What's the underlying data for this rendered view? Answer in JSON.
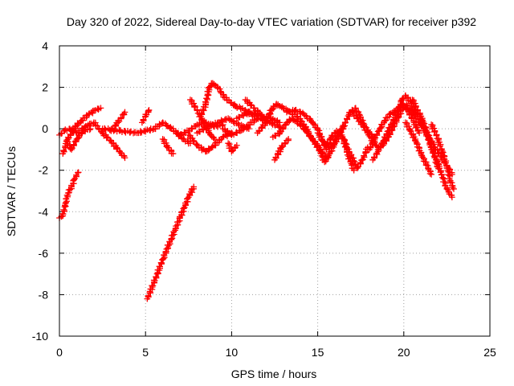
{
  "chart_data": {
    "type": "scatter",
    "title": "Day 320 of 2022, Sidereal Day-to-day VTEC variation (SDTVAR) for receiver p392",
    "xlabel": "GPS time / hours",
    "ylabel": "SDTVAR / TECUs",
    "xlim": [
      0,
      25
    ],
    "ylim": [
      -10,
      4
    ],
    "xticks": [
      "0",
      "5",
      "10",
      "15",
      "20",
      "25"
    ],
    "yticks": [
      "4",
      "2",
      "0",
      "-2",
      "-4",
      "-6",
      "-8",
      "-10"
    ],
    "grid": true,
    "marker": "plus",
    "color": "#ff0000",
    "series": [
      {
        "name": "arc-1",
        "values": [
          [
            0.0,
            -4.3
          ],
          [
            0.2,
            -4.2
          ],
          [
            0.35,
            -3.6
          ],
          [
            0.5,
            -3.1
          ],
          [
            0.7,
            -2.8
          ],
          [
            0.9,
            -2.4
          ],
          [
            1.1,
            -2.1
          ]
        ]
      },
      {
        "name": "arc-2",
        "values": [
          [
            5.1,
            -8.2
          ],
          [
            5.5,
            -7.4
          ],
          [
            6.0,
            -6.3
          ],
          [
            6.5,
            -5.3
          ],
          [
            7.0,
            -4.3
          ],
          [
            7.5,
            -3.3
          ],
          [
            7.8,
            -2.8
          ]
        ]
      },
      {
        "name": "arc-3",
        "values": [
          [
            0.0,
            -0.3
          ],
          [
            0.3,
            -0.1
          ],
          [
            0.6,
            0.0
          ],
          [
            1.0,
            -0.2
          ],
          [
            1.5,
            0.1
          ],
          [
            2.0,
            0.3
          ],
          [
            2.5,
            -0.2
          ],
          [
            3.0,
            -0.6
          ],
          [
            3.5,
            -1.1
          ],
          [
            3.8,
            -1.4
          ]
        ]
      },
      {
        "name": "arc-4",
        "values": [
          [
            0.2,
            -1.2
          ],
          [
            0.5,
            -0.5
          ],
          [
            0.9,
            0.1
          ],
          [
            1.3,
            0.4
          ],
          [
            1.7,
            0.7
          ],
          [
            2.1,
            0.9
          ],
          [
            2.4,
            1.0
          ]
        ]
      },
      {
        "name": "arc-5",
        "values": [
          [
            0.4,
            -0.6
          ],
          [
            0.7,
            -1.0
          ],
          [
            1.0,
            -0.5
          ],
          [
            1.4,
            -0.1
          ],
          [
            1.8,
            0.0
          ]
        ]
      },
      {
        "name": "arc-6",
        "values": [
          [
            3.0,
            -0.1
          ],
          [
            3.4,
            0.3
          ],
          [
            3.8,
            0.8
          ]
        ]
      },
      {
        "name": "arc-7",
        "values": [
          [
            4.8,
            0.3
          ],
          [
            5.0,
            0.6
          ],
          [
            5.2,
            0.9
          ]
        ]
      },
      {
        "name": "arc-8",
        "values": [
          [
            2.5,
            0.0
          ],
          [
            3.5,
            -0.1
          ],
          [
            4.5,
            -0.2
          ],
          [
            5.5,
            0.0
          ],
          [
            6.0,
            0.3
          ],
          [
            6.5,
            0.0
          ],
          [
            7.0,
            -0.3
          ],
          [
            7.5,
            -0.1
          ],
          [
            8.0,
            0.2
          ],
          [
            8.5,
            0.3
          ],
          [
            9.0,
            0.1
          ],
          [
            9.5,
            0.2
          ]
        ]
      },
      {
        "name": "arc-9",
        "values": [
          [
            6.0,
            -0.5
          ],
          [
            6.3,
            -0.9
          ],
          [
            6.6,
            -1.2
          ]
        ]
      },
      {
        "name": "arc-10",
        "values": [
          [
            6.8,
            -0.2
          ],
          [
            7.2,
            -0.5
          ],
          [
            7.6,
            -0.7
          ]
        ]
      },
      {
        "name": "arc-11",
        "values": [
          [
            7.5,
            -0.3
          ],
          [
            8.0,
            -0.8
          ],
          [
            8.5,
            -1.1
          ],
          [
            9.0,
            -0.8
          ],
          [
            9.5,
            -0.4
          ],
          [
            10.0,
            -0.2
          ]
        ]
      },
      {
        "name": "arc-12",
        "values": [
          [
            7.6,
            1.4
          ],
          [
            8.0,
            0.9
          ],
          [
            8.3,
            0.4
          ],
          [
            8.7,
            -0.2
          ],
          [
            9.0,
            -0.5
          ]
        ]
      },
      {
        "name": "arc-13",
        "values": [
          [
            8.2,
            0.6
          ],
          [
            8.5,
            1.2
          ],
          [
            8.7,
            2.0
          ],
          [
            8.9,
            2.2
          ],
          [
            9.2,
            2.0
          ],
          [
            9.6,
            1.5
          ],
          [
            10.2,
            1.1
          ],
          [
            10.8,
            0.9
          ],
          [
            11.3,
            0.6
          ]
        ]
      },
      {
        "name": "arc-14",
        "values": [
          [
            8.0,
            -0.2
          ],
          [
            8.6,
            0.1
          ],
          [
            9.2,
            0.3
          ],
          [
            9.8,
            0.5
          ],
          [
            10.4,
            0.2
          ],
          [
            11.0,
            0.0
          ]
        ]
      },
      {
        "name": "arc-15",
        "values": [
          [
            9.5,
            0.0
          ],
          [
            10.0,
            -0.3
          ],
          [
            10.5,
            -0.1
          ],
          [
            11.0,
            0.2
          ],
          [
            11.5,
            0.5
          ],
          [
            12.0,
            0.4
          ]
        ]
      },
      {
        "name": "arc-16",
        "values": [
          [
            9.8,
            -0.7
          ],
          [
            10.0,
            -1.1
          ],
          [
            10.3,
            -0.8
          ]
        ]
      },
      {
        "name": "arc-17",
        "values": [
          [
            10.3,
            0.5
          ],
          [
            11.0,
            0.8
          ],
          [
            11.5,
            0.7
          ],
          [
            12.0,
            0.4
          ],
          [
            12.5,
            0.2
          ],
          [
            13.0,
            0.0
          ]
        ]
      },
      {
        "name": "arc-18",
        "values": [
          [
            10.8,
            1.4
          ],
          [
            11.3,
            1.0
          ],
          [
            11.8,
            0.6
          ],
          [
            12.3,
            0.5
          ],
          [
            12.8,
            0.3
          ]
        ]
      },
      {
        "name": "arc-19",
        "values": [
          [
            11.5,
            -0.2
          ],
          [
            12.0,
            0.3
          ],
          [
            12.3,
            0.9
          ],
          [
            12.6,
            1.2
          ],
          [
            13.0,
            1.0
          ],
          [
            13.4,
            0.8
          ],
          [
            13.8,
            0.6
          ],
          [
            14.2,
            0.2
          ],
          [
            14.6,
            -0.4
          ],
          [
            15.0,
            -0.8
          ],
          [
            15.3,
            -1.2
          ],
          [
            15.6,
            -1.4
          ]
        ]
      },
      {
        "name": "arc-20",
        "values": [
          [
            12.4,
            -0.4
          ],
          [
            12.8,
            -0.2
          ],
          [
            13.2,
            0.3
          ],
          [
            13.5,
            0.5
          ],
          [
            14.0,
            0.2
          ],
          [
            14.4,
            -0.2
          ],
          [
            14.8,
            -0.6
          ],
          [
            15.2,
            -1.2
          ],
          [
            15.4,
            -1.6
          ],
          [
            15.7,
            -1.2
          ],
          [
            16.0,
            -0.7
          ],
          [
            16.3,
            -0.2
          ],
          [
            16.6,
            0.3
          ],
          [
            16.9,
            0.8
          ],
          [
            17.2,
            1.0
          ],
          [
            17.4,
            0.7
          ],
          [
            17.7,
            0.2
          ],
          [
            18.0,
            -0.2
          ],
          [
            18.3,
            -0.5
          ]
        ]
      },
      {
        "name": "arc-21",
        "values": [
          [
            13.2,
            0.8
          ],
          [
            13.7,
            0.9
          ],
          [
            14.2,
            0.7
          ],
          [
            14.6,
            0.4
          ],
          [
            15.0,
            0.0
          ],
          [
            15.3,
            -0.6
          ],
          [
            15.5,
            -1.0
          ]
        ]
      },
      {
        "name": "arc-22",
        "values": [
          [
            12.5,
            -1.5
          ],
          [
            12.9,
            -0.9
          ],
          [
            13.3,
            -0.5
          ]
        ]
      },
      {
        "name": "arc-23",
        "values": [
          [
            15.5,
            -0.8
          ],
          [
            15.8,
            -0.4
          ],
          [
            16.1,
            -0.1
          ],
          [
            16.4,
            -0.3
          ],
          [
            16.7,
            -0.9
          ],
          [
            17.0,
            -1.4
          ],
          [
            17.3,
            -1.9
          ],
          [
            17.6,
            -1.5
          ],
          [
            17.9,
            -0.9
          ]
        ]
      },
      {
        "name": "arc-24",
        "values": [
          [
            16.5,
            -0.5
          ],
          [
            16.7,
            -1.1
          ],
          [
            16.9,
            -1.6
          ],
          [
            17.1,
            -2.0
          ]
        ]
      },
      {
        "name": "arc-25",
        "values": [
          [
            17.0,
            0.8
          ],
          [
            17.3,
            0.5
          ],
          [
            17.6,
            0.2
          ],
          [
            17.9,
            -0.2
          ],
          [
            18.2,
            -0.6
          ],
          [
            18.5,
            -0.9
          ],
          [
            18.8,
            -0.8
          ],
          [
            19.1,
            -0.4
          ],
          [
            19.4,
            0.1
          ],
          [
            19.7,
            0.6
          ],
          [
            20.0,
            1.1
          ],
          [
            20.3,
            0.8
          ],
          [
            20.6,
            0.3
          ],
          [
            20.9,
            -0.2
          ]
        ]
      },
      {
        "name": "arc-26",
        "values": [
          [
            18.0,
            -1.0
          ],
          [
            18.3,
            -0.5
          ],
          [
            18.6,
            0.0
          ],
          [
            18.9,
            0.4
          ],
          [
            19.2,
            0.7
          ],
          [
            19.6,
            0.9
          ],
          [
            19.9,
            1.2
          ],
          [
            20.2,
            1.1
          ],
          [
            20.6,
            0.7
          ],
          [
            21.0,
            0.2
          ],
          [
            21.4,
            -0.3
          ],
          [
            21.8,
            -0.9
          ],
          [
            22.2,
            -1.4
          ],
          [
            22.6,
            -1.9
          ],
          [
            22.8,
            -2.2
          ]
        ]
      },
      {
        "name": "arc-27",
        "values": [
          [
            18.2,
            -1.5
          ],
          [
            18.5,
            -1.1
          ],
          [
            18.8,
            -0.6
          ],
          [
            19.1,
            -0.1
          ],
          [
            19.4,
            0.4
          ],
          [
            19.7,
            0.9
          ],
          [
            19.9,
            1.4
          ],
          [
            20.1,
            1.6
          ],
          [
            20.4,
            1.3
          ],
          [
            20.7,
            0.8
          ],
          [
            21.0,
            0.3
          ],
          [
            21.3,
            -0.2
          ],
          [
            21.6,
            -0.9
          ],
          [
            21.9,
            -1.5
          ],
          [
            22.2,
            -2.2
          ],
          [
            22.5,
            -2.9
          ],
          [
            22.8,
            -3.3
          ]
        ]
      },
      {
        "name": "arc-28",
        "values": [
          [
            20.5,
            1.4
          ],
          [
            20.8,
            0.9
          ],
          [
            21.1,
            0.4
          ],
          [
            21.4,
            -0.3
          ],
          [
            21.7,
            -1.1
          ],
          [
            22.0,
            -1.9
          ]
        ]
      },
      {
        "name": "arc-29",
        "values": [
          [
            21.6,
            0.2
          ],
          [
            21.9,
            -0.3
          ],
          [
            22.2,
            -1.0
          ],
          [
            22.5,
            -1.8
          ],
          [
            22.7,
            -2.5
          ],
          [
            22.9,
            -2.9
          ]
        ]
      },
      {
        "name": "arc-30",
        "values": [
          [
            20.1,
            0.3
          ],
          [
            20.4,
            -0.1
          ],
          [
            20.7,
            -0.6
          ],
          [
            21.0,
            -1.2
          ],
          [
            21.3,
            -1.7
          ],
          [
            21.6,
            -2.2
          ]
        ]
      },
      {
        "name": "arc-31",
        "values": [
          [
            15.0,
            -0.2
          ],
          [
            15.3,
            -0.6
          ],
          [
            15.6,
            -0.9
          ],
          [
            15.9,
            -0.7
          ],
          [
            16.2,
            -0.3
          ],
          [
            16.5,
            0.1
          ]
        ]
      }
    ]
  }
}
